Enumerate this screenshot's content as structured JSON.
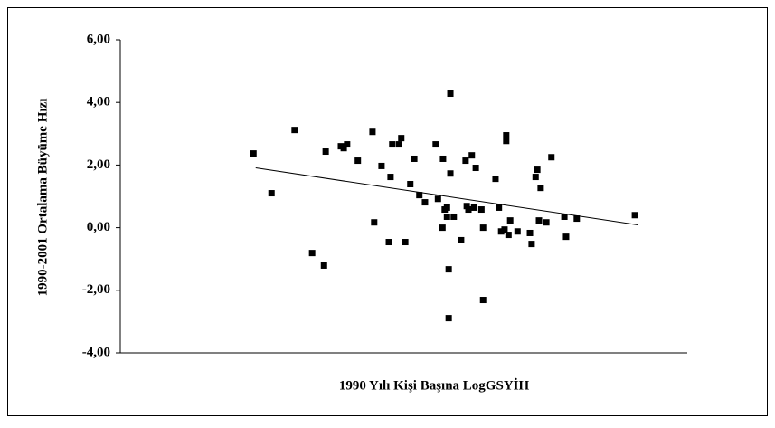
{
  "chart_data": {
    "type": "scatter",
    "x_label": "1990 Yılı Kişi Başına LogGSYİH",
    "y_label": "1990-2001 Ortalama Büyüme Hızı",
    "xlim": [
      0,
      100
    ],
    "ylim": [
      -4,
      6
    ],
    "yticks": [
      {
        "value": -4,
        "label": "-4,00"
      },
      {
        "value": -2,
        "label": "-2,00"
      },
      {
        "value": 0,
        "label": "0,00"
      },
      {
        "value": 2,
        "label": "2,00"
      },
      {
        "value": 4,
        "label": "4,00"
      },
      {
        "value": 6,
        "label": "6,00"
      }
    ],
    "color": "#000000",
    "x": [
      23.6,
      26.8,
      30.9,
      34.0,
      36.1,
      36.4,
      39.1,
      39.6,
      40.2,
      42.1,
      44.7,
      45.0,
      46.3,
      47.6,
      47.9,
      48.2,
      49.4,
      49.8,
      50.5,
      51.4,
      52.1,
      53.0,
      54.0,
      55.9,
      56.3,
      57.1,
      57.2,
      57.5,
      57.9,
      57.9,
      58.2,
      58.2,
      58.5,
      58.5,
      59.1,
      60.4,
      61.2,
      61.4,
      61.7,
      62.3,
      62.7,
      63.0,
      64.0,
      64.3,
      64.3,
      66.5,
      67.1,
      67.5,
      68.1,
      68.4,
      68.4,
      68.8,
      69.1,
      70.4,
      72.6,
      72.9,
      73.6,
      73.9,
      74.2,
      74.5,
      75.5,
      76.4,
      78.7,
      79.0,
      80.9,
      91.2
    ],
    "values": [
      2.37,
      1.1,
      3.12,
      -0.81,
      -1.21,
      2.43,
      2.6,
      2.54,
      2.66,
      2.14,
      3.06,
      0.17,
      1.97,
      -0.46,
      1.62,
      2.66,
      2.66,
      2.86,
      -0.46,
      1.39,
      2.2,
      1.04,
      0.81,
      2.66,
      0.92,
      0.0,
      2.2,
      0.58,
      0.64,
      0.35,
      -1.33,
      -2.89,
      4.28,
      1.73,
      0.35,
      -0.4,
      2.14,
      0.69,
      0.58,
      2.31,
      0.64,
      1.91,
      0.58,
      0.0,
      -2.31,
      1.56,
      0.64,
      -0.12,
      -0.06,
      2.95,
      2.77,
      -0.23,
      0.23,
      -0.12,
      -0.17,
      -0.52,
      1.62,
      1.85,
      0.23,
      1.27,
      0.17,
      2.25,
      0.35,
      -0.29,
      0.29,
      0.4
    ],
    "trendline": {
      "x": [
        24.0,
        91.7
      ],
      "values": [
        1.91,
        0.09
      ]
    }
  }
}
